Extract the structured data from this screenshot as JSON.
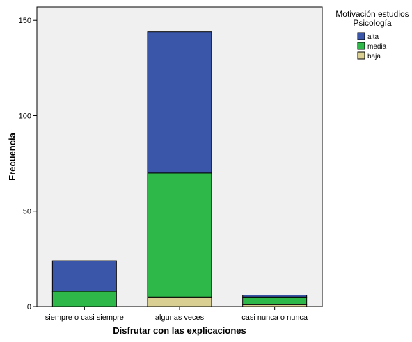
{
  "chart_data": {
    "type": "bar",
    "stacked": true,
    "categories": [
      "siempre o casi siempre",
      "algunas veces",
      "casi nunca o nunca"
    ],
    "series": [
      {
        "name": "baja",
        "values": [
          0,
          5,
          1
        ],
        "color": "#d9cf93"
      },
      {
        "name": "media",
        "values": [
          8,
          65,
          4
        ],
        "color": "#2fb84a"
      },
      {
        "name": "alta",
        "values": [
          16,
          74,
          1
        ],
        "color": "#3a56a8"
      }
    ],
    "legend_order": [
      "alta",
      "media",
      "baja"
    ],
    "title": "",
    "xlabel": "Disfrutar con las explicaciones",
    "ylabel": "Frecuencia",
    "ylim": [
      0,
      157
    ],
    "yticks": [
      0,
      50,
      100,
      150
    ],
    "grid": false,
    "plot_background": "#f0f0f0",
    "legend": {
      "title_lines": [
        "Motivación estudios",
        "Psicología"
      ],
      "placement": "top-right outside plot"
    }
  }
}
